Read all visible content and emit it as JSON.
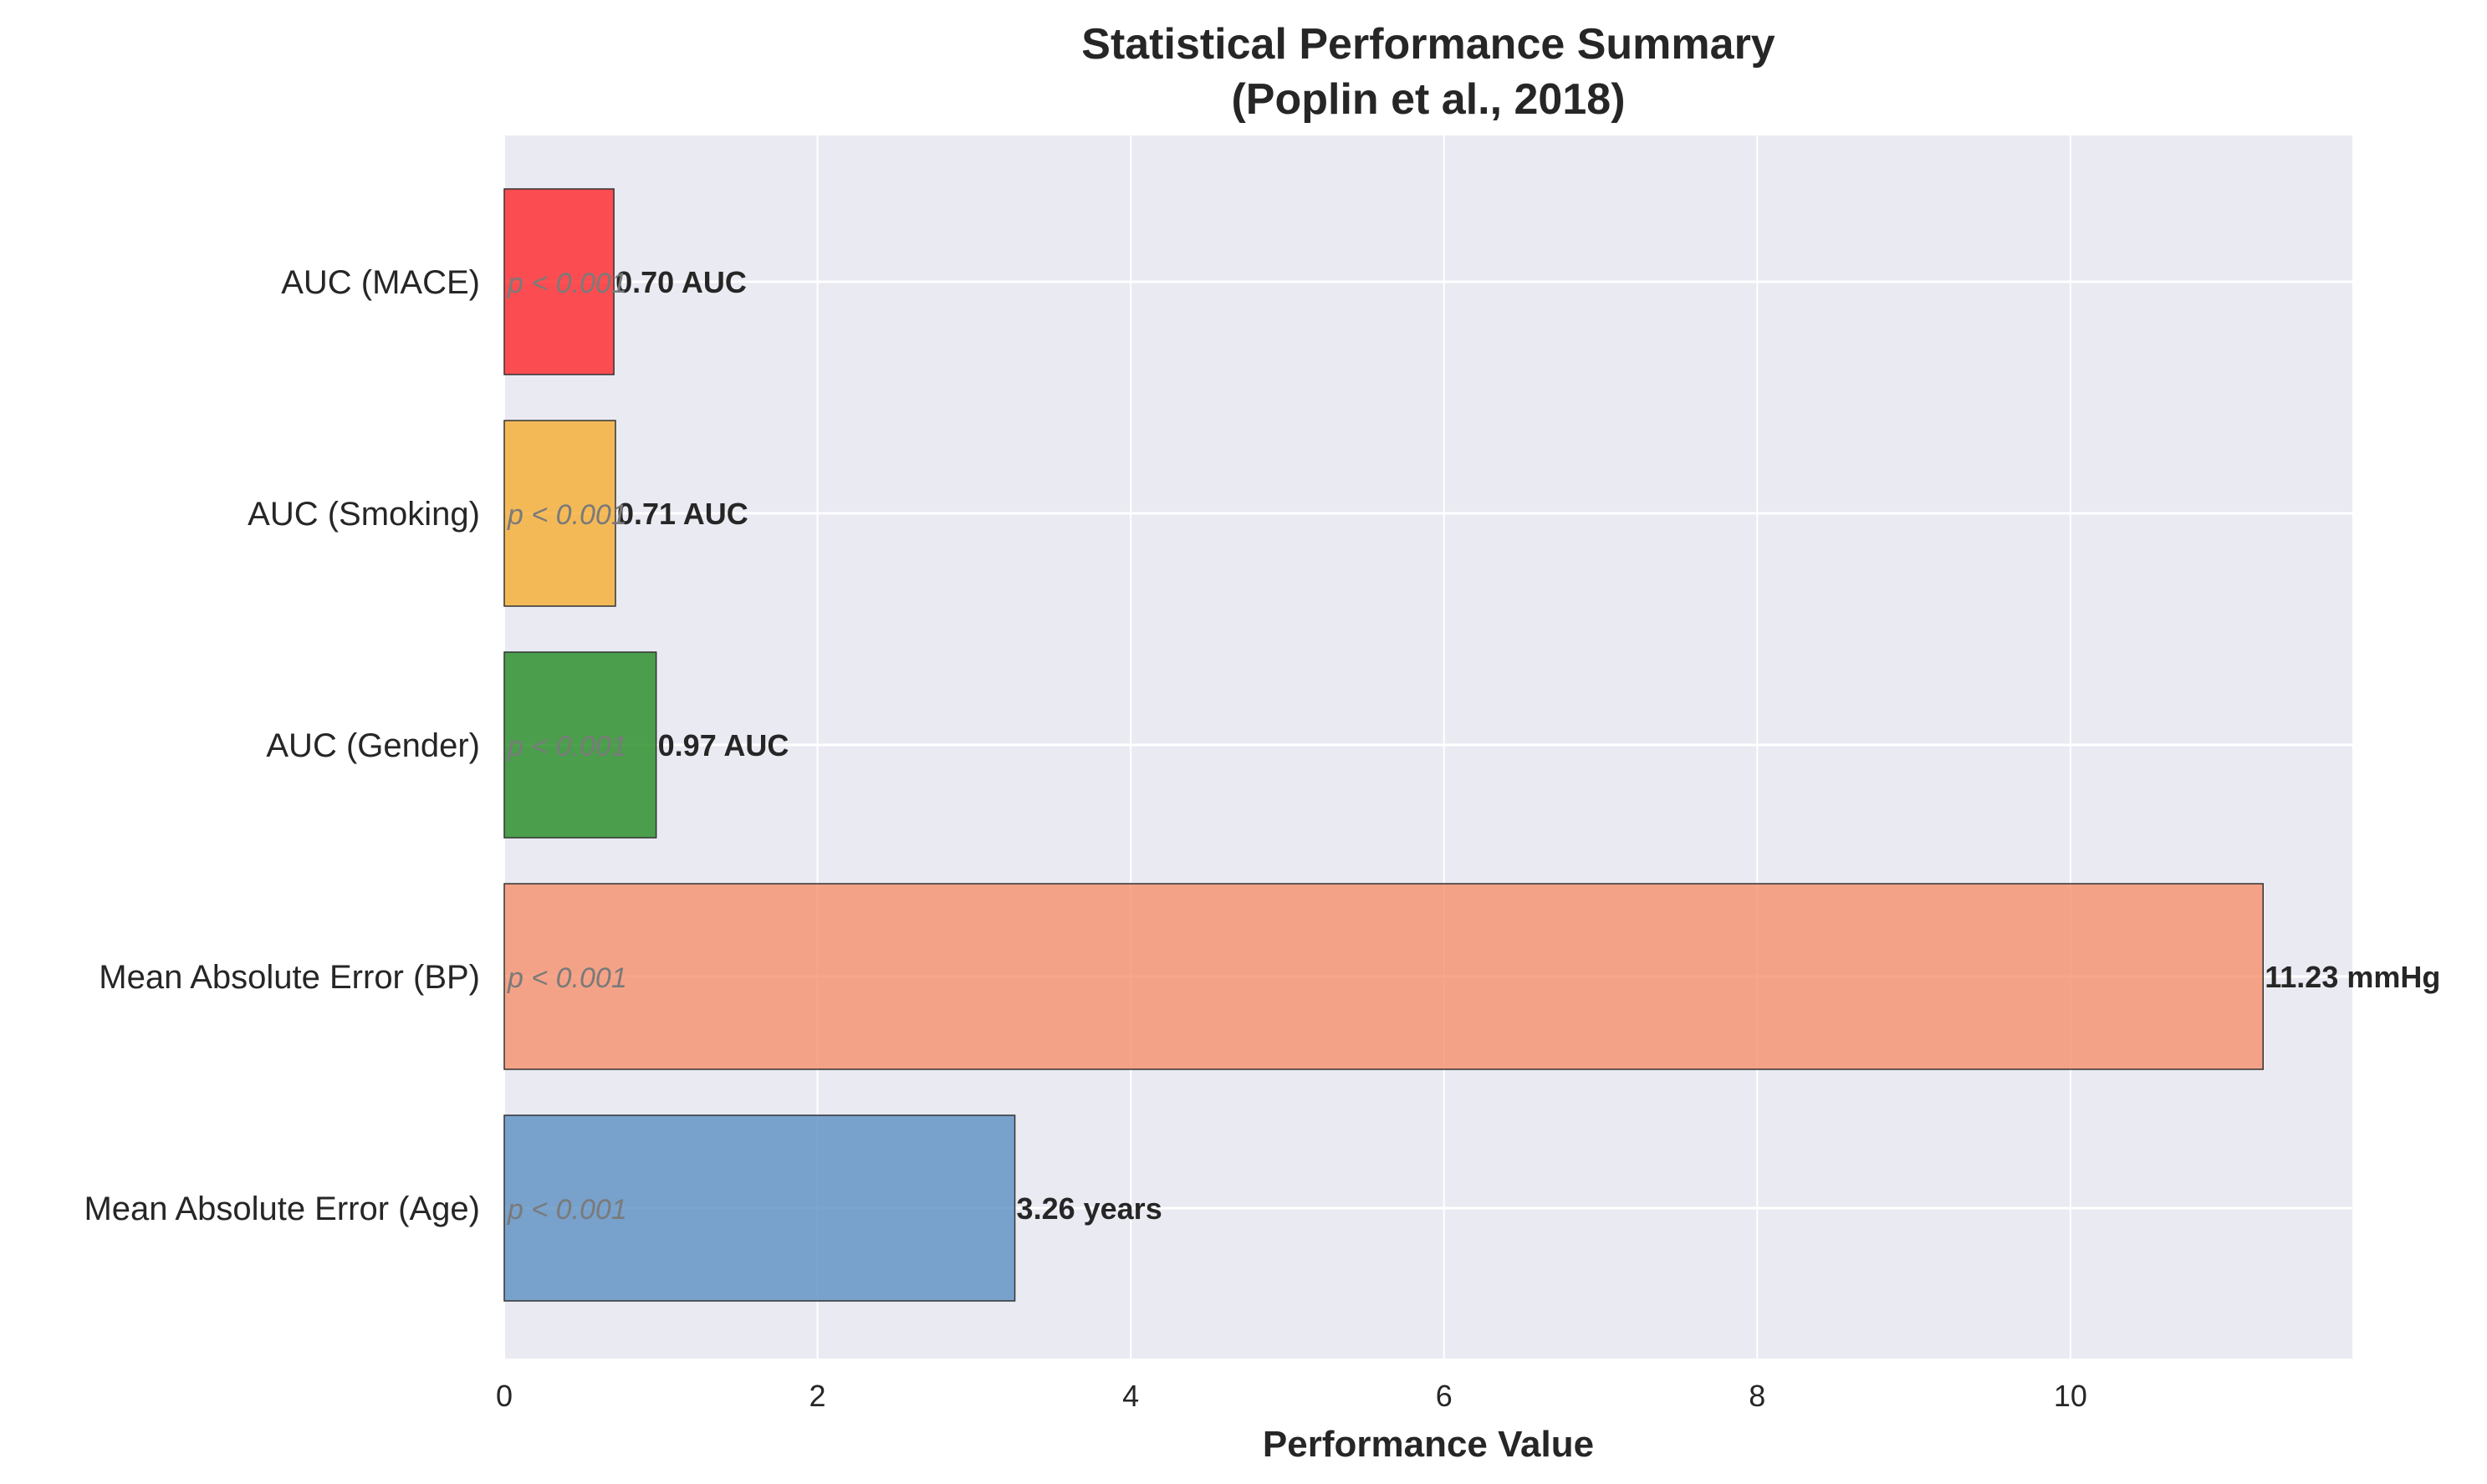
{
  "chart_data": {
    "type": "bar",
    "orientation": "horizontal",
    "title": "Statistical Performance Summary",
    "subtitle": "(Poplin et al., 2018)",
    "xlabel": "Performance Value",
    "ylabel": "",
    "xlim": [
      0,
      11.8
    ],
    "xticks": [
      0,
      2,
      4,
      6,
      8,
      10
    ],
    "grid": true,
    "categories": [
      "Mean Absolute Error (Age)",
      "Mean Absolute Error (BP)",
      "AUC (Gender)",
      "AUC (Smoking)",
      "AUC (MACE)"
    ],
    "values": [
      3.26,
      11.23,
      0.97,
      0.71,
      0.7
    ],
    "value_labels": [
      "3.26 years",
      "11.23 mmHg",
      "0.97 AUC",
      "0.71 AUC",
      "0.70 AUC"
    ],
    "p_labels": [
      "p < 0.001",
      "p < 0.001",
      "p < 0.001",
      "p < 0.001",
      "p < 0.001"
    ],
    "colors": [
      "#5b8ec2",
      "#f6906c",
      "#228b22",
      "#f6ad2f",
      "#ff2528"
    ]
  }
}
